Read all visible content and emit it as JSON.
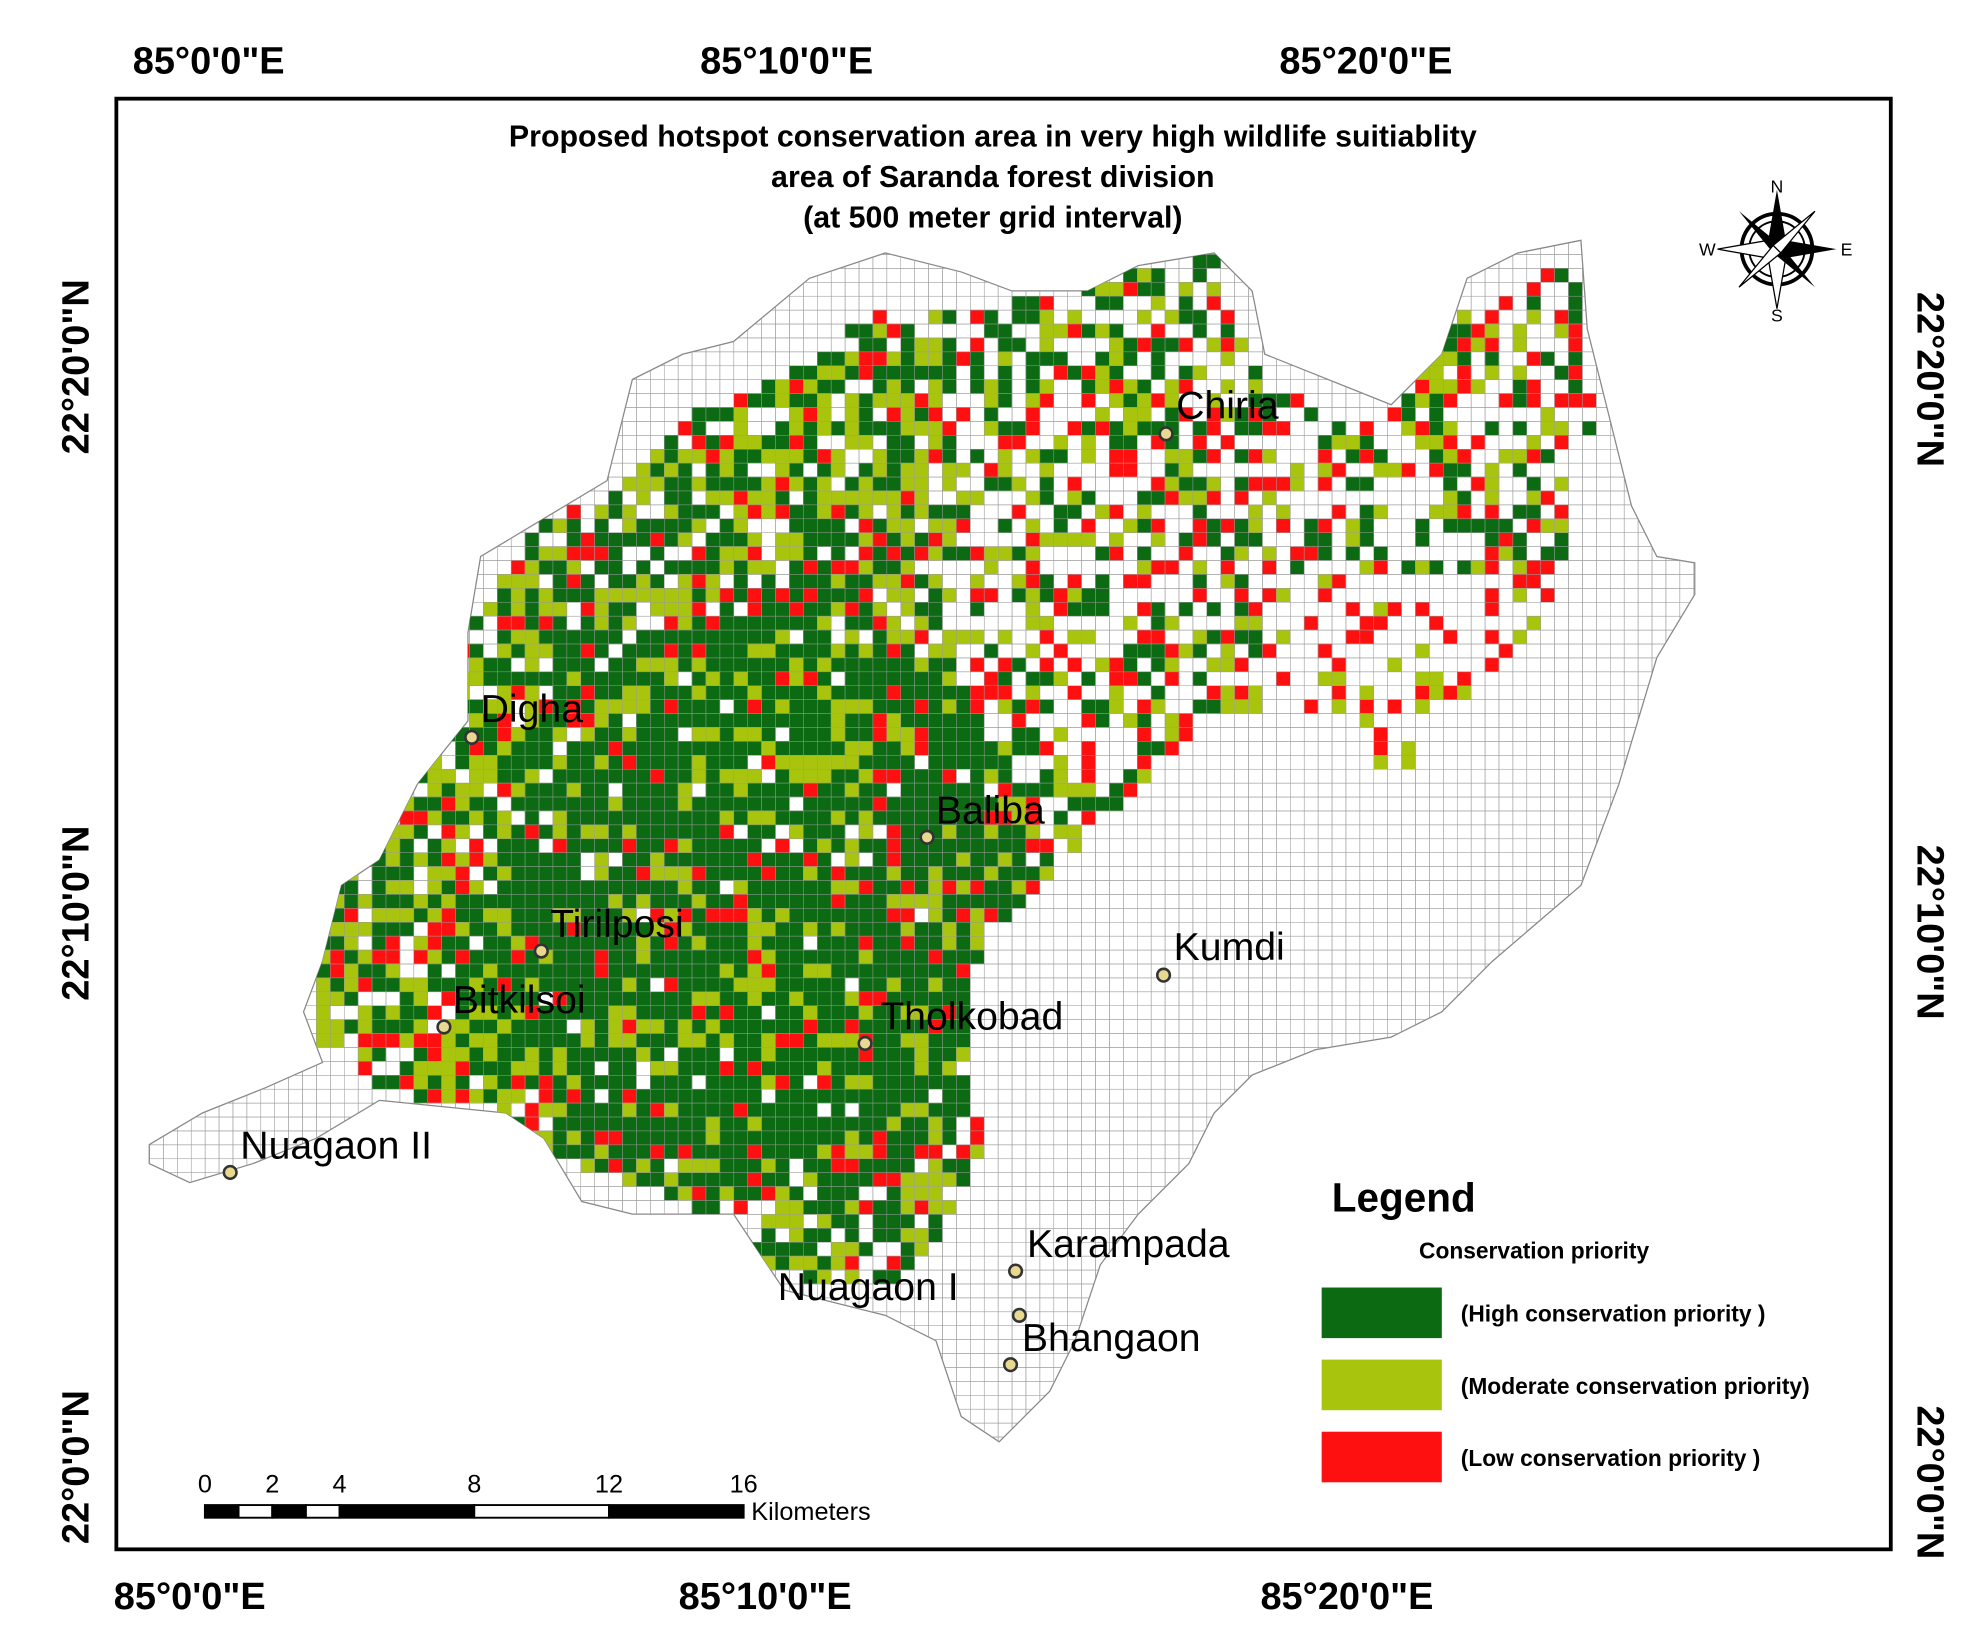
{
  "map": {
    "title": [
      "Proposed  hotspot conservation area  in very high wildlife suitiablity",
      "area of Saranda forest division",
      "(at  500 meter grid interval)"
    ],
    "longitude_labels": [
      "85°0'0\"E",
      "85°10'0\"E",
      "85°20'0\"E"
    ],
    "latitude_labels": [
      "22°20'0\"N",
      "22°10'0\"N",
      "22°0'0\"N"
    ],
    "compass": [
      "N",
      "S",
      "W",
      "E"
    ],
    "places": [
      "Chiria",
      "Digha",
      "Baliba",
      "Tirilposi",
      "Kumdi",
      "Bitkilsoi",
      "Tholkobad",
      "Nuagaon II",
      "Karampada",
      "Nuagaon I",
      "Bhangaon"
    ],
    "legend": {
      "title": "Legend",
      "subtitle": "Conservation priority",
      "items": [
        {
          "label": "(High conservation priority )",
          "color": "#0b6a12"
        },
        {
          "label": "(Moderate conservation priority)",
          "color": "#a8c40c"
        },
        {
          "label": "(Low conservation priority )",
          "color": "#ff1010"
        }
      ]
    },
    "scale_bar": {
      "ticks": [
        0,
        2,
        4,
        8,
        12,
        16
      ],
      "unit": "Kilometers"
    }
  }
}
